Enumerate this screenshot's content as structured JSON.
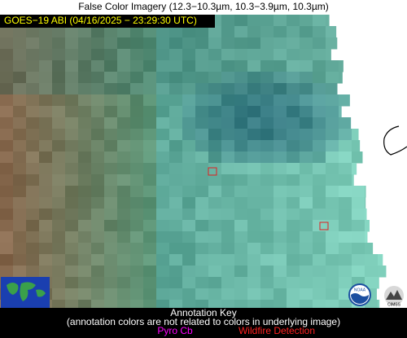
{
  "header": {
    "title": "False Color Imagery (12.3−10.3µm, 10.3−3.9µm, 10.3µm)",
    "subtitle": "GOES−19 ABI (04/16/2025 − 23:29:30 UTC)"
  },
  "key": {
    "title": "Annotation Key",
    "note": "(annotation colors are not related to colors in underlying image)",
    "items": [
      "Pyro Cb",
      "Wildfire Detection"
    ]
  },
  "logos": [
    "NOAA",
    "CIMSS"
  ]
}
